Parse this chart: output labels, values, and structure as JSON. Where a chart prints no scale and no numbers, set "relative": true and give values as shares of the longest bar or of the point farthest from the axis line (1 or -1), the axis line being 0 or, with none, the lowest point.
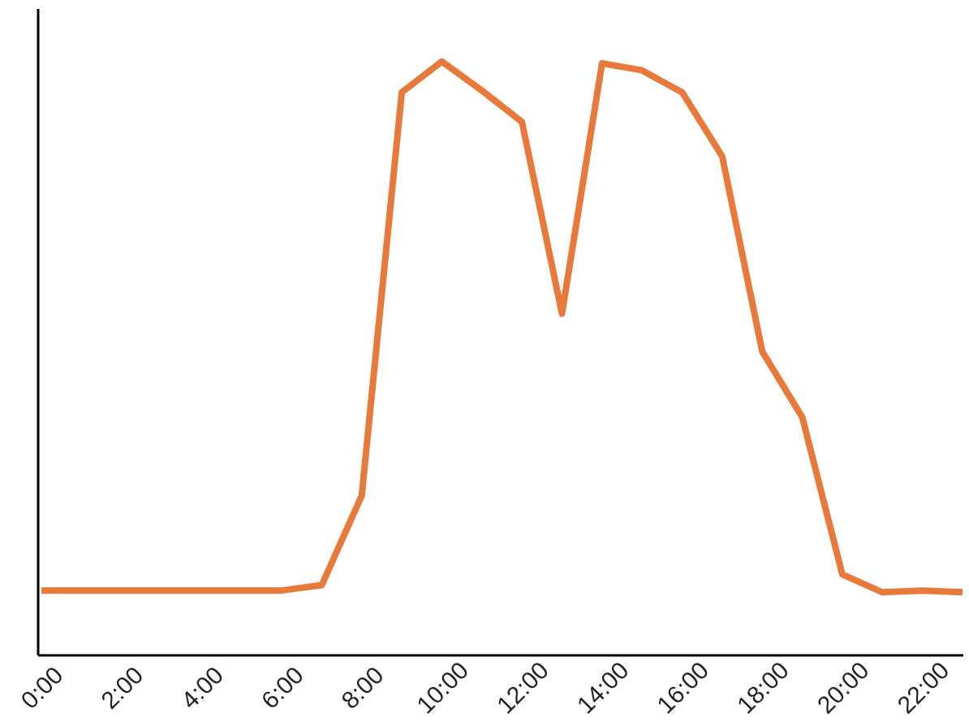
{
  "chart_data": {
    "type": "line",
    "relative": true,
    "grid": false,
    "legend": false,
    "marker": "none",
    "line_style": "solid",
    "x": [
      0,
      1,
      2,
      3,
      4,
      5,
      6,
      7,
      8,
      9,
      10,
      11,
      12,
      13,
      14,
      15,
      16,
      17,
      18,
      19,
      20,
      21,
      22,
      23
    ],
    "xlim": [
      -0.1,
      23
    ],
    "xticks": [
      {
        "value": 0,
        "label": "0:00"
      },
      {
        "value": 2,
        "label": "2:00"
      },
      {
        "value": 4,
        "label": "4:00"
      },
      {
        "value": 6,
        "label": "6:00"
      },
      {
        "value": 8,
        "label": "8:00"
      },
      {
        "value": 10,
        "label": "10:00"
      },
      {
        "value": 12,
        "label": "12:00"
      },
      {
        "value": 14,
        "label": "14:00"
      },
      {
        "value": 16,
        "label": "16:00"
      },
      {
        "value": 18,
        "label": "18:00"
      },
      {
        "value": 20,
        "label": "20:00"
      },
      {
        "value": 22,
        "label": "22:00"
      }
    ],
    "series": [
      {
        "color": "#e8793a",
        "values": [
          0.108,
          0.108,
          0.108,
          0.108,
          0.108,
          0.108,
          0.108,
          0.117,
          0.268,
          0.948,
          1,
          0.951,
          0.898,
          0.575,
          0.997,
          0.985,
          0.948,
          0.84,
          0.511,
          0.4,
          0.135,
          0.105,
          0.108,
          0.105
        ]
      }
    ]
  }
}
